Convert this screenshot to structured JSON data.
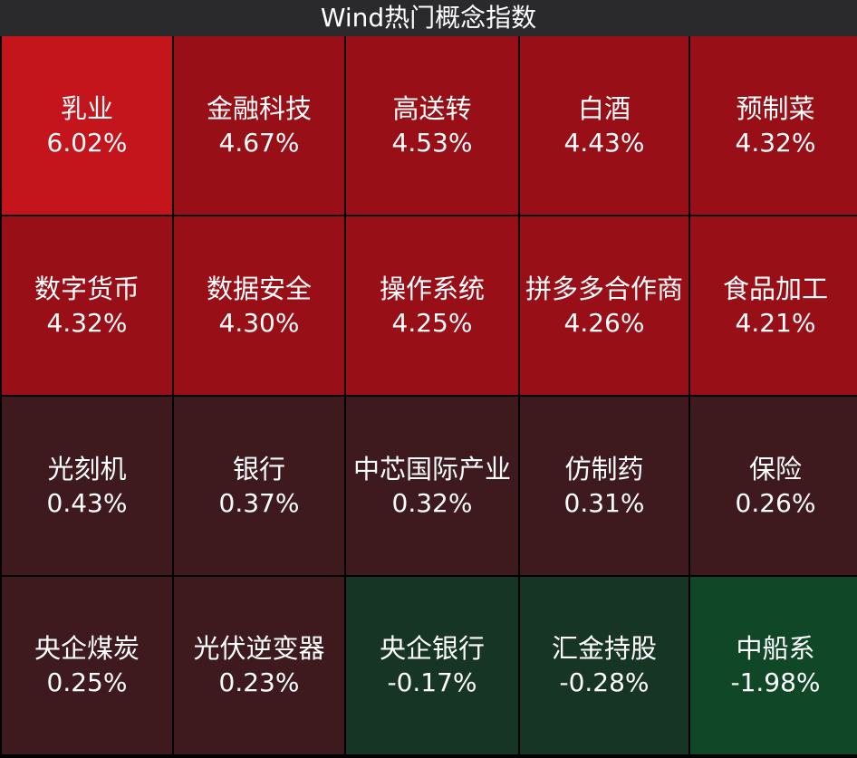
{
  "header": {
    "title": "Wind热门概念指数"
  },
  "tiles": [
    {
      "name": "乳业",
      "change": "6.02%",
      "color": "#c4141c"
    },
    {
      "name": "金融科技",
      "change": "4.67%",
      "color": "#990f17"
    },
    {
      "name": "高送转",
      "change": "4.53%",
      "color": "#990f17"
    },
    {
      "name": "白酒",
      "change": "4.43%",
      "color": "#990f17"
    },
    {
      "name": "预制菜",
      "change": "4.32%",
      "color": "#990f17"
    },
    {
      "name": "数字货币",
      "change": "4.32%",
      "color": "#990f17"
    },
    {
      "name": "数据安全",
      "change": "4.30%",
      "color": "#990f17"
    },
    {
      "name": "操作系统",
      "change": "4.25%",
      "color": "#990f17"
    },
    {
      "name": "拼多多合作商",
      "change": "4.26%",
      "color": "#990f17"
    },
    {
      "name": "食品加工",
      "change": "4.21%",
      "color": "#990f17"
    },
    {
      "name": "光刻机",
      "change": "0.43%",
      "color": "#3e1a1e"
    },
    {
      "name": "银行",
      "change": "0.37%",
      "color": "#3e1a1e"
    },
    {
      "name": "中芯国际产业",
      "change": "0.32%",
      "color": "#3e1a1e"
    },
    {
      "name": "仿制药",
      "change": "0.31%",
      "color": "#3e1a1e"
    },
    {
      "name": "保险",
      "change": "0.26%",
      "color": "#3e1a1e"
    },
    {
      "name": "央企煤炭",
      "change": "0.25%",
      "color": "#3e1a1e"
    },
    {
      "name": "光伏逆变器",
      "change": "0.23%",
      "color": "#3e1a1e"
    },
    {
      "name": "央企银行",
      "change": "-0.17%",
      "color": "#173524"
    },
    {
      "name": "汇金持股",
      "change": "-0.28%",
      "color": "#173524"
    },
    {
      "name": "中船系",
      "change": "-1.98%",
      "color": "#0f4727"
    }
  ]
}
